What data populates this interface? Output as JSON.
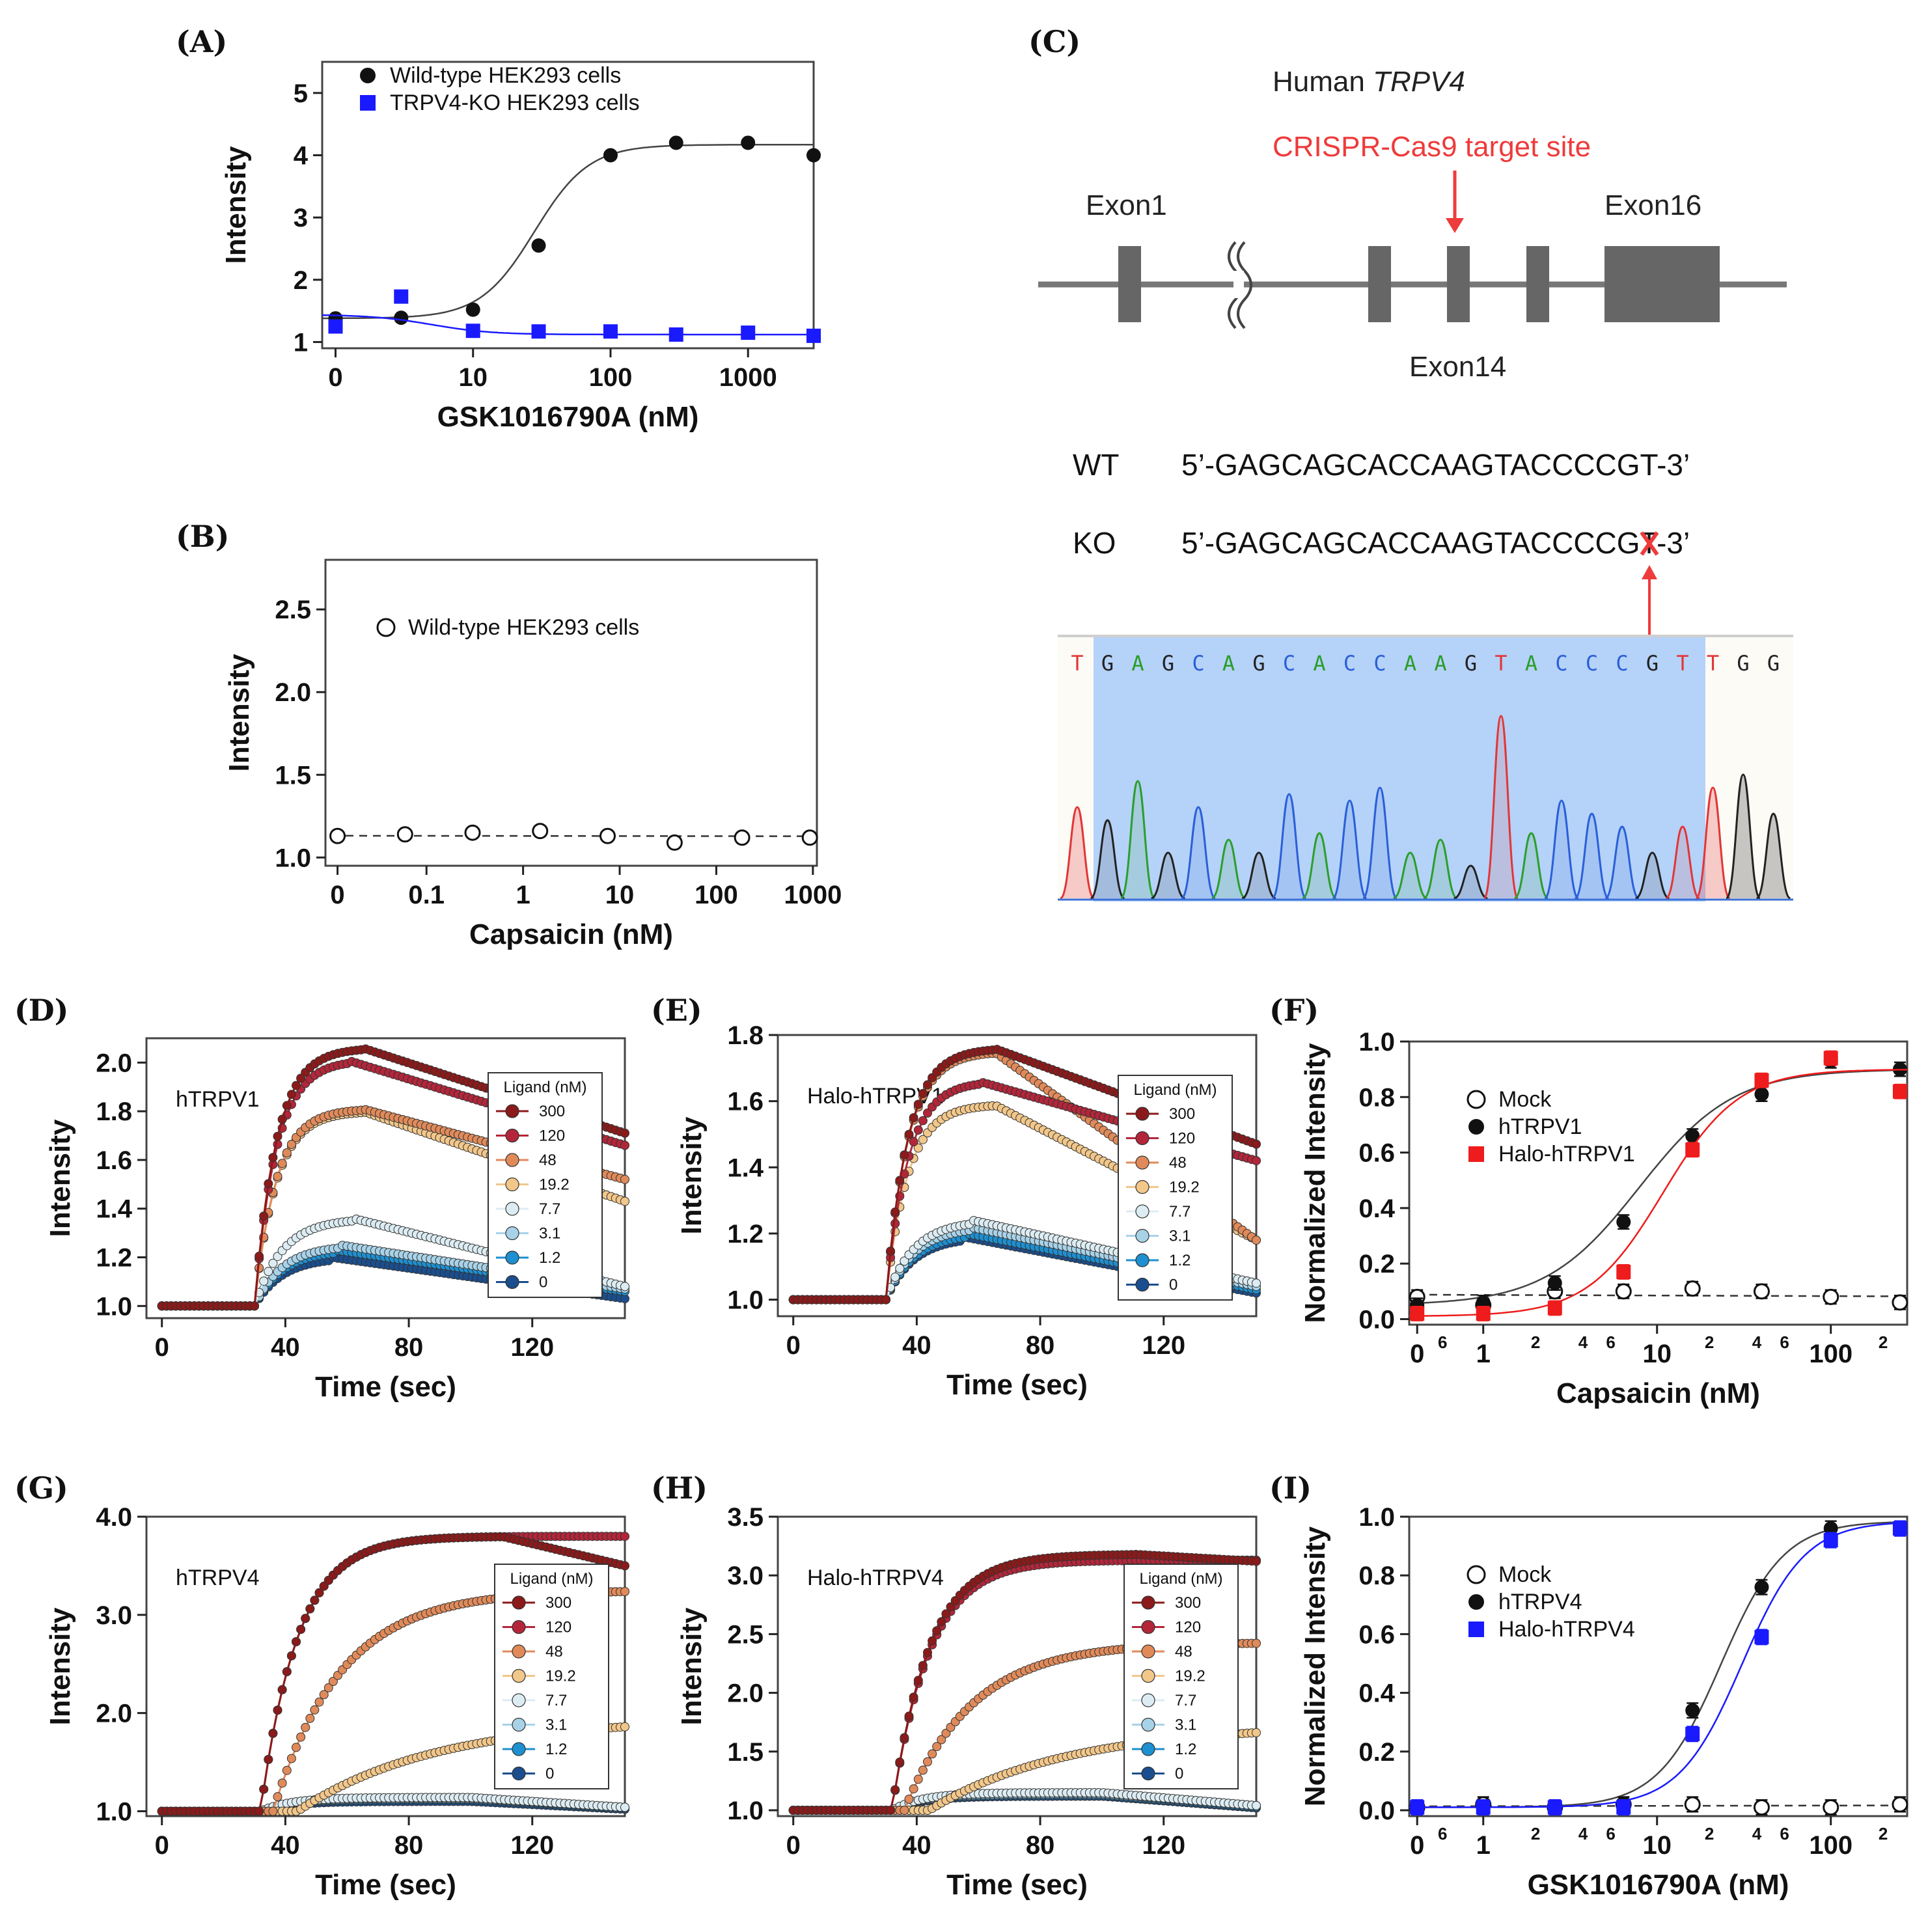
{
  "panels": {
    "A": "(A)",
    "B": "(B)",
    "C": "(C)",
    "D": "(D)",
    "E": "(E)",
    "F": "(F)",
    "G": "(G)",
    "H": "(H)",
    "I": "(I)"
  },
  "colors": {
    "black": "#111111",
    "blue": "#1a1aff",
    "red": "#ee1c1c",
    "gray": "#666666",
    "ligand": [
      "#8b1a1a",
      "#b3263a",
      "#e08a5a",
      "#f2c78a",
      "#dcecf2",
      "#a8d2e8",
      "#1e8fd0",
      "#1a4e8e"
    ]
  },
  "chart_data": [
    {
      "id": "A",
      "type": "scatter",
      "title": "",
      "xlabel": "GSK1016790A (nM)",
      "ylabel": "Intensity",
      "xscale": "log",
      "xlim": [
        0.8,
        3000
      ],
      "ylim": [
        0.9,
        5.5
      ],
      "xticks": [
        "0",
        "10",
        "100",
        "1000"
      ],
      "yticks": [
        "1",
        "2",
        "3",
        "4",
        "5"
      ],
      "legend": [
        "Wild-type HEK293 cells",
        "TRPV4-KO HEK293 cells"
      ],
      "series": [
        {
          "name": "Wild-type HEK293 cells",
          "marker": "circle",
          "color": "#111111",
          "x": [
            1,
            3,
            10,
            30,
            100,
            300,
            1000,
            3000
          ],
          "y": [
            1.38,
            1.39,
            1.52,
            2.55,
            4.0,
            4.2,
            4.2,
            4.0
          ],
          "fit": {
            "bottom": 1.38,
            "top": 4.17,
            "ec50": 28,
            "hill": 2.2
          }
        },
        {
          "name": "TRPV4-KO HEK293 cells",
          "marker": "square",
          "color": "#1a1aff",
          "x": [
            1,
            3,
            10,
            30,
            100,
            300,
            1000,
            3000
          ],
          "y": [
            1.25,
            1.73,
            1.18,
            1.17,
            1.17,
            1.12,
            1.15,
            1.1
          ],
          "fit": {
            "bottom": 1.44,
            "top": 1.12,
            "ec50": 5,
            "hill": 2.0
          }
        }
      ]
    },
    {
      "id": "B",
      "type": "scatter",
      "title": "",
      "xlabel": "Capsaicin (nM)",
      "ylabel": "Intensity",
      "xscale": "log",
      "xlim": [
        0.009,
        1100
      ],
      "ylim": [
        0.95,
        2.8
      ],
      "xticks": [
        "0",
        "0.1",
        "1",
        "10",
        "100",
        "1000"
      ],
      "yticks": [
        "1.0",
        "1.5",
        "2.0",
        "2.5"
      ],
      "legend": [
        "Wild-type HEK293 cells"
      ],
      "series": [
        {
          "name": "Wild-type HEK293 cells",
          "marker": "open-circle",
          "color": "#111111",
          "x": [
            0.012,
            0.06,
            0.3,
            1.5,
            7.5,
            37,
            185,
            930
          ],
          "y": [
            1.13,
            1.14,
            1.15,
            1.16,
            1.13,
            1.09,
            1.12,
            1.12
          ],
          "dashed": true
        }
      ]
    },
    {
      "id": "D",
      "type": "line",
      "inner_label": "hTRPV1",
      "xlabel": "Time (sec)",
      "ylabel": "Intensity",
      "xlim": [
        -5,
        150
      ],
      "ylim": [
        0.95,
        2.1
      ],
      "xticks": [
        "0",
        "40",
        "80",
        "120"
      ],
      "yticks": [
        "1.0",
        "1.2",
        "1.4",
        "1.6",
        "1.8",
        "2.0"
      ],
      "legend_title": "Ligand (nM)",
      "legend": [
        "300",
        "120",
        "48",
        "19.2",
        "7.7",
        "3.1",
        "1.2",
        "0"
      ],
      "onset": 30,
      "peaks": [
        2.06,
        2.01,
        1.81,
        1.8,
        1.36,
        1.25,
        1.23,
        1.2
      ],
      "peak_times": [
        65,
        60,
        65,
        65,
        62,
        58,
        56,
        55
      ],
      "ends": [
        1.71,
        1.66,
        1.52,
        1.43,
        1.08,
        1.07,
        1.06,
        1.03
      ]
    },
    {
      "id": "E",
      "type": "line",
      "inner_label": "Halo-hTRPV1",
      "xlabel": "Time (sec)",
      "ylabel": "Intensity",
      "xlim": [
        -5,
        150
      ],
      "ylim": [
        0.95,
        1.8
      ],
      "xticks": [
        "0",
        "40",
        "80",
        "120"
      ],
      "yticks": [
        "1.0",
        "1.2",
        "1.4",
        "1.6",
        "1.8"
      ],
      "legend_title": "Ligand (nM)",
      "legend": [
        "300",
        "120",
        "48",
        "19.2",
        "7.7",
        "3.1",
        "1.2",
        "0"
      ],
      "onset": 30,
      "peaks": [
        1.76,
        1.66,
        1.75,
        1.59,
        1.24,
        1.22,
        1.2,
        1.19
      ],
      "peak_times": [
        65,
        60,
        65,
        65,
        58,
        57,
        56,
        55
      ],
      "ends": [
        1.47,
        1.42,
        1.18,
        1.18,
        1.05,
        1.04,
        1.03,
        1.02
      ]
    },
    {
      "id": "F",
      "type": "scatter",
      "title": "",
      "xlabel": "Capsaicin (nM)",
      "ylabel": "Normalized Intensity",
      "xscale": "log",
      "xlim": [
        0.45,
        330
      ],
      "ylim": [
        -0.02,
        1.0
      ],
      "xticks": [
        "0",
        "1",
        "10",
        "100"
      ],
      "yticks": [
        "0.0",
        "0.2",
        "0.4",
        "0.6",
        "0.8",
        "1.0"
      ],
      "legend": [
        "Mock",
        "hTRPV1",
        "Halo-hTRPV1"
      ],
      "series": [
        {
          "name": "Mock",
          "marker": "open-circle",
          "color": "#111111",
          "x": [
            0.5,
            1.2,
            3.1,
            7.7,
            19.2,
            48,
            120,
            300
          ],
          "y": [
            0.08,
            0.05,
            0.1,
            0.1,
            0.11,
            0.1,
            0.08,
            0.06
          ],
          "dashed": true
        },
        {
          "name": "hTRPV1",
          "marker": "circle",
          "color": "#111111",
          "x": [
            0.5,
            1.2,
            3.1,
            7.7,
            19.2,
            48,
            120,
            300
          ],
          "y": [
            0.05,
            0.06,
            0.13,
            0.35,
            0.66,
            0.81,
            0.93,
            0.9
          ],
          "fit": {
            "bottom": 0.05,
            "top": 0.9,
            "ec50": 9.5,
            "hill": 1.6
          }
        },
        {
          "name": "Halo-hTRPV1",
          "marker": "square",
          "color": "#ee1c1c",
          "x": [
            0.5,
            1.2,
            3.1,
            7.7,
            19.2,
            48,
            120,
            300
          ],
          "y": [
            0.02,
            0.02,
            0.04,
            0.17,
            0.61,
            0.86,
            0.94,
            0.82
          ],
          "fit": {
            "bottom": 0.01,
            "top": 0.9,
            "ec50": 13,
            "hill": 2.0
          }
        }
      ]
    },
    {
      "id": "G",
      "type": "line",
      "inner_label": "hTRPV4",
      "xlabel": "Time (sec)",
      "ylabel": "Intensity",
      "xlim": [
        -5,
        150
      ],
      "ylim": [
        0.95,
        4.0
      ],
      "xticks": [
        "0",
        "40",
        "80",
        "120"
      ],
      "yticks": [
        "1.0",
        "2.0",
        "3.0",
        "4.0"
      ],
      "legend_title": "Ligand (nM)",
      "legend": [
        "300",
        "120",
        "48",
        "19.2",
        "7.7",
        "3.1",
        "1.2",
        "0"
      ],
      "onset": 32,
      "peaks": [
        3.8,
        3.8,
        3.25,
        1.95,
        1.14,
        1.13,
        1.12,
        1.1
      ],
      "ends": [
        3.5,
        3.75,
        3.25,
        1.95,
        1.04,
        1.04,
        1.03,
        1.02
      ]
    },
    {
      "id": "H",
      "type": "line",
      "inner_label": "Halo-hTRPV4",
      "xlabel": "Time (sec)",
      "ylabel": "Intensity",
      "xlim": [
        -5,
        150
      ],
      "ylim": [
        0.95,
        3.5
      ],
      "xticks": [
        "0",
        "40",
        "80",
        "120"
      ],
      "yticks": [
        "1.0",
        "1.5",
        "2.0",
        "2.5",
        "3.0",
        "3.5"
      ],
      "legend_title": "Ligand (nM)",
      "legend": [
        "300",
        "120",
        "48",
        "19.2",
        "7.7",
        "3.1",
        "1.2",
        "0"
      ],
      "onset": 32,
      "peaks": [
        3.18,
        3.13,
        2.43,
        1.73,
        1.15,
        1.14,
        1.13,
        1.12
      ],
      "ends": [
        3.12,
        3.13,
        2.43,
        1.73,
        1.04,
        1.04,
        1.03,
        1.02
      ]
    },
    {
      "id": "I",
      "type": "scatter",
      "title": "",
      "xlabel": "GSK1016790A (nM)",
      "ylabel": "Normalized Intensity",
      "xscale": "log",
      "xlim": [
        0.45,
        330
      ],
      "ylim": [
        -0.02,
        1.0
      ],
      "xticks": [
        "0",
        "1",
        "10",
        "100"
      ],
      "yticks": [
        "0.0",
        "0.2",
        "0.4",
        "0.6",
        "0.8",
        "1.0"
      ],
      "legend": [
        "Mock",
        "hTRPV4",
        "Halo-hTRPV4"
      ],
      "series": [
        {
          "name": "Mock",
          "marker": "open-circle",
          "color": "#111111",
          "x": [
            0.5,
            1.2,
            3.1,
            7.7,
            19.2,
            48,
            120,
            300
          ],
          "y": [
            0.01,
            0.02,
            0.01,
            0.02,
            0.02,
            0.01,
            0.01,
            0.02
          ],
          "dashed": true
        },
        {
          "name": "hTRPV4",
          "marker": "circle",
          "color": "#111111",
          "x": [
            0.5,
            1.2,
            3.1,
            7.7,
            19.2,
            48,
            120,
            300
          ],
          "y": [
            0.01,
            0.01,
            0.01,
            0.02,
            0.34,
            0.76,
            0.96,
            0.96
          ],
          "fit": {
            "bottom": 0.01,
            "top": 0.985,
            "ec50": 28,
            "hill": 2.4
          }
        },
        {
          "name": "Halo-hTRPV4",
          "marker": "square",
          "color": "#1a1aff",
          "x": [
            0.5,
            1.2,
            3.1,
            7.7,
            19.2,
            48,
            120,
            300
          ],
          "y": [
            0.01,
            0.01,
            0.01,
            0.01,
            0.26,
            0.59,
            0.92,
            0.96
          ],
          "fit": {
            "bottom": 0.01,
            "top": 0.985,
            "ec50": 37,
            "hill": 2.4
          }
        }
      ]
    }
  ],
  "panel_c": {
    "gene_prefix": "Human ",
    "gene_name": "TRPV4",
    "target_label": "CRISPR-Cas9 target site",
    "exon1": "Exon1",
    "exon14": "Exon14",
    "exon16": "Exon16",
    "wt_label": "WT",
    "ko_label": "KO",
    "wt_seq": "5’-GAGCAGCACCAAGTACCCCGT-3’",
    "ko_seq": "5’-GAGCAGCACCAAGTACCCCGT-3’",
    "trace_bases": [
      "T",
      "G",
      "A",
      "G",
      "C",
      "A",
      "G",
      "C",
      "A",
      "C",
      "C",
      "A",
      "A",
      "G",
      "T",
      "A",
      "C",
      "C",
      "C",
      "G",
      "T",
      "T",
      "G",
      "G"
    ]
  }
}
